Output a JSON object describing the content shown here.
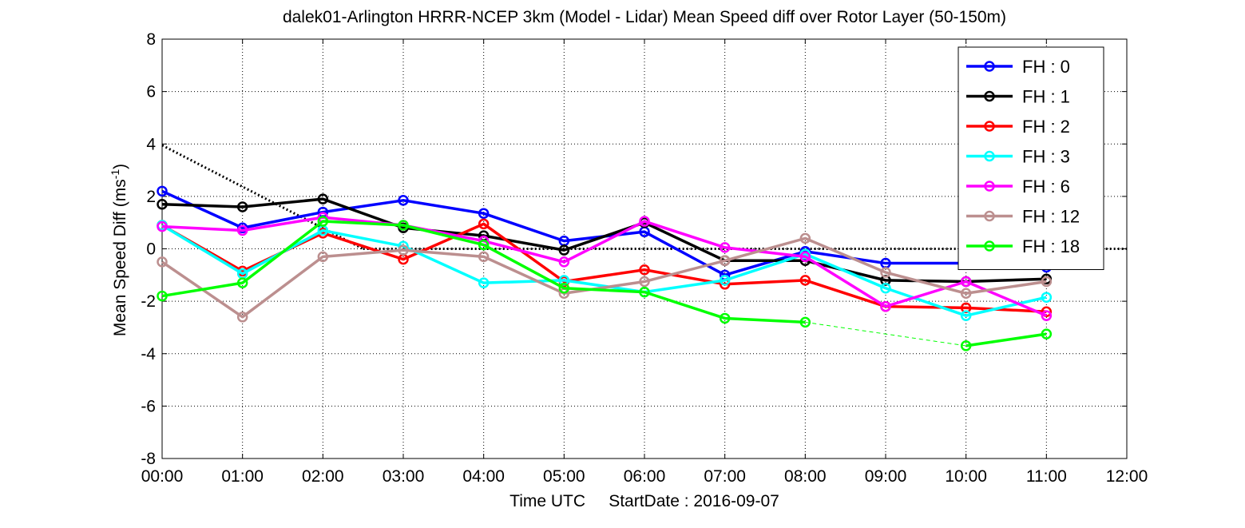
{
  "chart_data": {
    "type": "line",
    "title": "dalek01-Arlington HRRR-NCEP 3km (Model - Lidar) Mean Speed diff over Rotor Layer (50-150m)",
    "xlabel": "Time UTC     StartDate : 2016-09-07",
    "ylabel": "Mean Speed Diff (ms",
    "ylabel_sup": "-1",
    "ylabel_tail": ")",
    "x_ticks": [
      "00:00",
      "01:00",
      "02:00",
      "03:00",
      "04:00",
      "05:00",
      "06:00",
      "07:00",
      "08:00",
      "09:00",
      "10:00",
      "11:00",
      "12:00"
    ],
    "xlim": [
      0,
      12
    ],
    "y_ticks": [
      "8",
      "6",
      "4",
      "2",
      "0",
      "-2",
      "-4",
      "-6",
      "-8"
    ],
    "ylim": [
      -8,
      8
    ],
    "grid": true,
    "legend_position": "top-right",
    "x": [
      0,
      1,
      2,
      3,
      4,
      5,
      6,
      7,
      8,
      9,
      10,
      11
    ],
    "series": [
      {
        "name": "FH : 0",
        "color": "#0000ff",
        "values": [
          2.2,
          0.8,
          1.4,
          1.85,
          1.35,
          0.3,
          0.65,
          -1.0,
          -0.1,
          -0.55,
          -0.55,
          -0.7
        ]
      },
      {
        "name": "FH : 1",
        "color": "#000000",
        "values": [
          1.7,
          1.6,
          1.9,
          0.8,
          0.5,
          -0.05,
          1.0,
          -0.45,
          -0.45,
          -1.2,
          -1.25,
          -1.15
        ]
      },
      {
        "name": "FH : 2",
        "color": "#ff0000",
        "values": [
          0.9,
          -0.85,
          0.6,
          -0.4,
          0.95,
          -1.25,
          -0.8,
          -1.35,
          -1.2,
          -2.2,
          -2.25,
          -2.4
        ]
      },
      {
        "name": "FH : 3",
        "color": "#00ffff",
        "values": [
          0.9,
          -0.95,
          0.7,
          0.1,
          -1.3,
          -1.2,
          -1.65,
          -1.2,
          -0.2,
          -1.5,
          -2.55,
          -1.85
        ]
      },
      {
        "name": "FH : 6",
        "color": "#ff00ff",
        "values": [
          0.85,
          0.7,
          1.2,
          0.9,
          0.3,
          -0.5,
          1.05,
          0.05,
          -0.3,
          -2.2,
          -1.25,
          -2.55
        ]
      },
      {
        "name": "FH : 12",
        "color": "#bc8f8f",
        "values": [
          -0.5,
          -2.6,
          -0.3,
          -0.05,
          -0.3,
          -1.7,
          -1.25,
          -0.45,
          0.4,
          -0.9,
          -1.7,
          -1.25
        ]
      },
      {
        "name": "FH : 18",
        "color": "#00ff00",
        "values": [
          -1.8,
          -1.3,
          1.05,
          0.9,
          0.15,
          -1.5,
          -1.65,
          -2.65,
          -2.8,
          null,
          -3.7,
          -3.25
        ]
      }
    ],
    "dashed_segments": [
      {
        "color": "#00ff00",
        "x": [
          8,
          10
        ],
        "y": [
          -2.8,
          -3.7
        ]
      }
    ],
    "dotted_lines": [
      {
        "color": "#000000",
        "x": [
          0,
          2.5
        ],
        "y": [
          3.95,
          0
        ]
      },
      {
        "color": "#000000",
        "x": [
          2.5,
          12
        ],
        "y": [
          0,
          0
        ]
      }
    ]
  }
}
